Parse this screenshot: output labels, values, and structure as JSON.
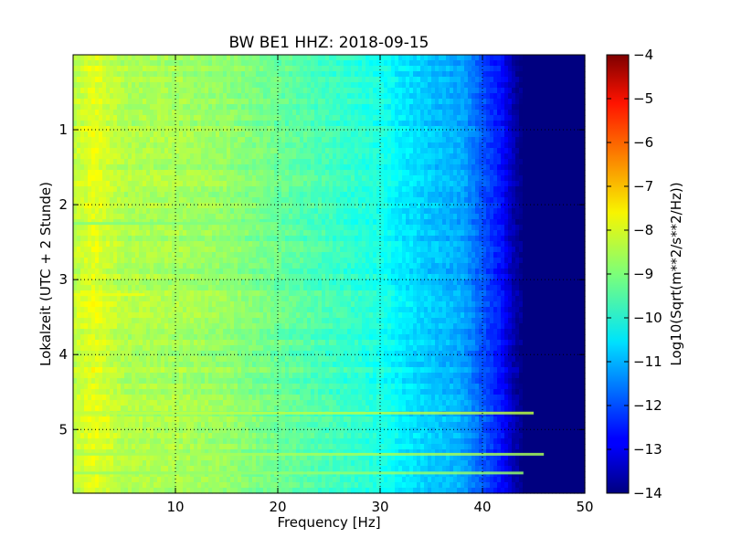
{
  "chart_data": {
    "type": "heatmap",
    "title": "BW BE1 HHZ: 2018-09-15",
    "xlabel": "Frequency [Hz]",
    "ylabel": "Lokalzeit (UTC + 2 Stunde)",
    "xlim": [
      0,
      50
    ],
    "ylim": [
      5.85,
      0
    ],
    "x_ticks": [
      10,
      20,
      30,
      40,
      50
    ],
    "y_ticks": [
      1,
      2,
      3,
      4,
      5
    ],
    "grid": true,
    "colorbar": {
      "label": "Log10(Sqrt(m**2/s**2/Hz))",
      "range": [
        -14,
        -4
      ],
      "ticks": [
        -4,
        -5,
        -6,
        -7,
        -8,
        -9,
        -10,
        -11,
        -12,
        -13,
        -14
      ],
      "colormap": "jet"
    },
    "spectral_profile": {
      "frequency_hz": [
        0,
        2,
        5,
        10,
        15,
        20,
        25,
        30,
        32,
        35,
        38,
        40,
        42,
        43,
        44,
        45,
        50
      ],
      "log10_amplitude": [
        -8.4,
        -8.0,
        -8.5,
        -8.6,
        -8.8,
        -9.2,
        -9.6,
        -10.0,
        -10.4,
        -10.8,
        -11.1,
        -11.9,
        -12.7,
        -13.5,
        -14,
        -14,
        -14
      ]
    },
    "horizontal_lines": [
      {
        "time": 4.78,
        "fmax": 45,
        "log10_amplitude": -8.4
      },
      {
        "time": 5.33,
        "fmax": 46,
        "log10_amplitude": -8.6
      },
      {
        "time": 5.58,
        "fmax": 44,
        "log10_amplitude": -8.8
      },
      {
        "time": 3.2,
        "fmax": 7,
        "log10_amplitude": -7.9
      },
      {
        "time": 2.25,
        "fmax": 20,
        "log10_amplitude": -9.0
      }
    ]
  }
}
